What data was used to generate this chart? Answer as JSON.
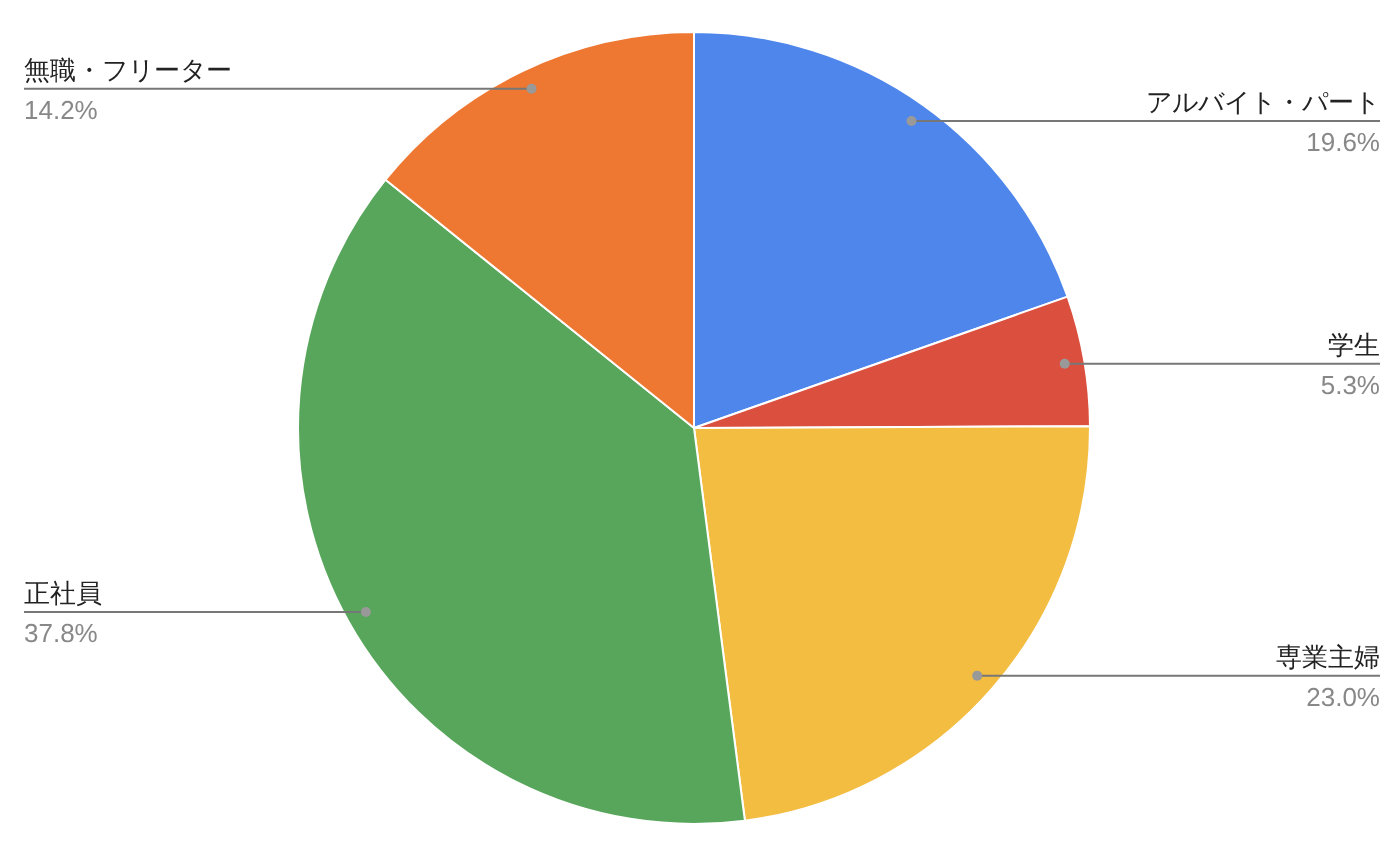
{
  "chart_data": {
    "type": "pie",
    "categories": [
      "アルバイト・パート",
      "学生",
      "専業主婦",
      "正社員",
      "無職・フリーター"
    ],
    "values": [
      19.6,
      5.3,
      23.0,
      37.8,
      14.2
    ],
    "value_labels": [
      "19.6%",
      "5.3%",
      "23.0%",
      "37.8%",
      "14.2%"
    ],
    "colors": [
      "#4e86ec",
      "#db4f3f",
      "#f3bd42",
      "#58a65c",
      "#ee7731"
    ]
  }
}
